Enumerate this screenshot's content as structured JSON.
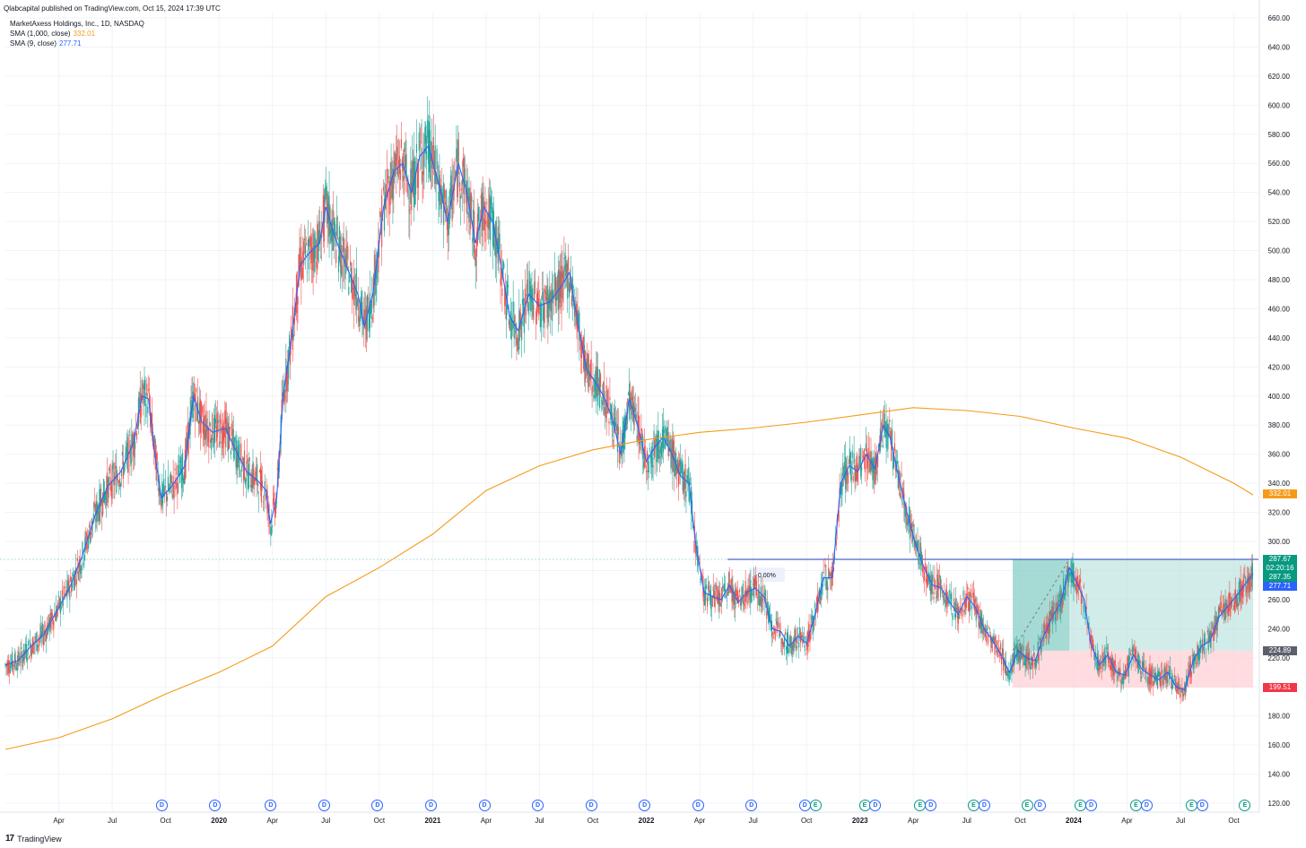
{
  "header": {
    "published": "Qlabcapital published on TradingView.com, Oct 15, 2024 17:39 UTC",
    "symbol": "MarketAxess Holdings, Inc., 1D, NASDAQ",
    "sma1000_label": "SMA (1,000, close)",
    "sma1000_value": "332.01",
    "sma9_label": "SMA (9, close)",
    "sma9_value": "277.71"
  },
  "footer": {
    "brand": "TradingView",
    "logo": "17"
  },
  "colors": {
    "up": "#26a69a",
    "down": "#ef5350",
    "sma1000": "#f59b19",
    "sma9": "#2962ff",
    "profit": "#b2dfdb",
    "loss": "#ffcdd2",
    "tag_green": "#089981",
    "tag_red": "#f23645",
    "tag_gray": "#5d606b"
  },
  "price_tags": {
    "sma1000": "332.01",
    "last": "287.67",
    "countdown": "02:20:16",
    "close": "287.35",
    "sma9": "277.71",
    "entry": "224.89",
    "stop": "199.51"
  },
  "measure_label": "0.00%",
  "events": [
    {
      "t": 2019.73,
      "k": "D"
    },
    {
      "t": 2019.98,
      "k": "D"
    },
    {
      "t": 2020.24,
      "k": "D"
    },
    {
      "t": 2020.49,
      "k": "D"
    },
    {
      "t": 2020.74,
      "k": "D"
    },
    {
      "t": 2020.99,
      "k": "D"
    },
    {
      "t": 2021.24,
      "k": "D"
    },
    {
      "t": 2021.49,
      "k": "D"
    },
    {
      "t": 2021.74,
      "k": "D"
    },
    {
      "t": 2021.99,
      "k": "D"
    },
    {
      "t": 2022.24,
      "k": "D"
    },
    {
      "t": 2022.49,
      "k": "D"
    },
    {
      "t": 2022.74,
      "k": "D"
    },
    {
      "t": 2022.79,
      "k": "E"
    },
    {
      "t": 2023.02,
      "k": "E"
    },
    {
      "t": 2023.07,
      "k": "D"
    },
    {
      "t": 2023.28,
      "k": "E"
    },
    {
      "t": 2023.33,
      "k": "D"
    },
    {
      "t": 2023.53,
      "k": "E"
    },
    {
      "t": 2023.58,
      "k": "D"
    },
    {
      "t": 2023.78,
      "k": "E"
    },
    {
      "t": 2023.84,
      "k": "D"
    },
    {
      "t": 2024.03,
      "k": "E"
    },
    {
      "t": 2024.08,
      "k": "D"
    },
    {
      "t": 2024.29,
      "k": "E"
    },
    {
      "t": 2024.34,
      "k": "D"
    },
    {
      "t": 2024.55,
      "k": "E"
    },
    {
      "t": 2024.6,
      "k": "D"
    },
    {
      "t": 2024.8,
      "k": "E"
    }
  ],
  "chart_data": {
    "type": "line",
    "title": "MarketAxess Holdings, Inc., 1D, NASDAQ",
    "xlabel": "",
    "ylabel": "",
    "ylim": [
      120,
      660
    ],
    "y_ticks": [
      120,
      140,
      160,
      180,
      200,
      220,
      240,
      260,
      280,
      300,
      320,
      340,
      360,
      380,
      400,
      420,
      440,
      460,
      480,
      500,
      520,
      540,
      560,
      580,
      600,
      620,
      640,
      660
    ],
    "x_ticks": [
      {
        "t": 2019.25,
        "label": "Apr"
      },
      {
        "t": 2019.5,
        "label": "Jul"
      },
      {
        "t": 2019.75,
        "label": "Oct"
      },
      {
        "t": 2020.0,
        "label": "2020"
      },
      {
        "t": 2020.25,
        "label": "Apr"
      },
      {
        "t": 2020.5,
        "label": "Jul"
      },
      {
        "t": 2020.75,
        "label": "Oct"
      },
      {
        "t": 2021.0,
        "label": "2021"
      },
      {
        "t": 2021.25,
        "label": "Apr"
      },
      {
        "t": 2021.5,
        "label": "Jul"
      },
      {
        "t": 2021.75,
        "label": "Oct"
      },
      {
        "t": 2022.0,
        "label": "2022"
      },
      {
        "t": 2022.25,
        "label": "Apr"
      },
      {
        "t": 2022.5,
        "label": "Jul"
      },
      {
        "t": 2022.75,
        "label": "Oct"
      },
      {
        "t": 2023.0,
        "label": "2023"
      },
      {
        "t": 2023.25,
        "label": "Apr"
      },
      {
        "t": 2023.5,
        "label": "Jul"
      },
      {
        "t": 2023.75,
        "label": "Oct"
      },
      {
        "t": 2024.0,
        "label": "2024"
      },
      {
        "t": 2024.25,
        "label": "Apr"
      },
      {
        "t": 2024.5,
        "label": "Jul"
      },
      {
        "t": 2024.75,
        "label": "Oct"
      }
    ],
    "grid": true,
    "series": [
      {
        "name": "SMA (9, close)",
        "points": [
          [
            2019.0,
            215
          ],
          [
            2019.06,
            218
          ],
          [
            2019.12,
            228
          ],
          [
            2019.18,
            236
          ],
          [
            2019.24,
            252
          ],
          [
            2019.3,
            268
          ],
          [
            2019.36,
            290
          ],
          [
            2019.42,
            318
          ],
          [
            2019.48,
            338
          ],
          [
            2019.54,
            348
          ],
          [
            2019.6,
            368
          ],
          [
            2019.64,
            400
          ],
          [
            2019.67,
            398
          ],
          [
            2019.7,
            360
          ],
          [
            2019.73,
            330
          ],
          [
            2019.78,
            338
          ],
          [
            2019.84,
            352
          ],
          [
            2019.88,
            400
          ],
          [
            2019.92,
            382
          ],
          [
            2019.97,
            375
          ],
          [
            2020.03,
            378
          ],
          [
            2020.08,
            362
          ],
          [
            2020.13,
            348
          ],
          [
            2020.18,
            342
          ],
          [
            2020.22,
            335
          ],
          [
            2020.24,
            312
          ],
          [
            2020.27,
            330
          ],
          [
            2020.3,
            400
          ],
          [
            2020.34,
            440
          ],
          [
            2020.38,
            490
          ],
          [
            2020.42,
            498
          ],
          [
            2020.47,
            505
          ],
          [
            2020.5,
            530
          ],
          [
            2020.54,
            510
          ],
          [
            2020.6,
            488
          ],
          [
            2020.65,
            470
          ],
          [
            2020.68,
            448
          ],
          [
            2020.72,
            470
          ],
          [
            2020.77,
            530
          ],
          [
            2020.82,
            555
          ],
          [
            2020.86,
            560
          ],
          [
            2020.9,
            540
          ],
          [
            2020.94,
            565
          ],
          [
            2020.98,
            572
          ],
          [
            2021.03,
            545
          ],
          [
            2021.07,
            520
          ],
          [
            2021.12,
            560
          ],
          [
            2021.16,
            540
          ],
          [
            2021.2,
            505
          ],
          [
            2021.24,
            530
          ],
          [
            2021.28,
            520
          ],
          [
            2021.32,
            490
          ],
          [
            2021.36,
            455
          ],
          [
            2021.4,
            445
          ],
          [
            2021.45,
            470
          ],
          [
            2021.5,
            462
          ],
          [
            2021.55,
            465
          ],
          [
            2021.6,
            475
          ],
          [
            2021.64,
            485
          ],
          [
            2021.68,
            450
          ],
          [
            2021.72,
            418
          ],
          [
            2021.76,
            410
          ],
          [
            2021.8,
            400
          ],
          [
            2021.84,
            385
          ],
          [
            2021.88,
            360
          ],
          [
            2021.92,
            398
          ],
          [
            2021.96,
            380
          ],
          [
            2022.0,
            355
          ],
          [
            2022.04,
            365
          ],
          [
            2022.08,
            372
          ],
          [
            2022.12,
            360
          ],
          [
            2022.16,
            345
          ],
          [
            2022.2,
            340
          ],
          [
            2022.23,
            300
          ],
          [
            2022.27,
            265
          ],
          [
            2022.31,
            262
          ],
          [
            2022.35,
            260
          ],
          [
            2022.39,
            270
          ],
          [
            2022.43,
            258
          ],
          [
            2022.47,
            265
          ],
          [
            2022.51,
            268
          ],
          [
            2022.55,
            262
          ],
          [
            2022.59,
            240
          ],
          [
            2022.63,
            238
          ],
          [
            2022.67,
            228
          ],
          [
            2022.71,
            235
          ],
          [
            2022.75,
            230
          ],
          [
            2022.79,
            250
          ],
          [
            2022.83,
            275
          ],
          [
            2022.87,
            275
          ],
          [
            2022.91,
            340
          ],
          [
            2022.95,
            352
          ],
          [
            2022.99,
            348
          ],
          [
            2023.03,
            360
          ],
          [
            2023.07,
            350
          ],
          [
            2023.11,
            380
          ],
          [
            2023.14,
            372
          ],
          [
            2023.18,
            345
          ],
          [
            2023.22,
            320
          ],
          [
            2023.26,
            298
          ],
          [
            2023.3,
            282
          ],
          [
            2023.34,
            270
          ],
          [
            2023.38,
            268
          ],
          [
            2023.42,
            258
          ],
          [
            2023.46,
            250
          ],
          [
            2023.5,
            262
          ],
          [
            2023.54,
            255
          ],
          [
            2023.58,
            240
          ],
          [
            2023.62,
            232
          ],
          [
            2023.66,
            222
          ],
          [
            2023.7,
            210
          ],
          [
            2023.74,
            225
          ],
          [
            2023.78,
            220
          ],
          [
            2023.82,
            218
          ],
          [
            2023.86,
            235
          ],
          [
            2023.9,
            248
          ],
          [
            2023.94,
            258
          ],
          [
            2023.98,
            282
          ],
          [
            2024.02,
            270
          ],
          [
            2024.05,
            260
          ],
          [
            2024.08,
            230
          ],
          [
            2024.12,
            215
          ],
          [
            2024.16,
            222
          ],
          [
            2024.2,
            210
          ],
          [
            2024.24,
            208
          ],
          [
            2024.28,
            222
          ],
          [
            2024.32,
            212
          ],
          [
            2024.36,
            208
          ],
          [
            2024.4,
            205
          ],
          [
            2024.44,
            210
          ],
          [
            2024.48,
            200
          ],
          [
            2024.52,
            198
          ],
          [
            2024.56,
            218
          ],
          [
            2024.6,
            228
          ],
          [
            2024.64,
            232
          ],
          [
            2024.68,
            248
          ],
          [
            2024.72,
            255
          ],
          [
            2024.76,
            262
          ],
          [
            2024.8,
            270
          ],
          [
            2024.84,
            278
          ]
        ]
      },
      {
        "name": "SMA (1,000, close)",
        "points": [
          [
            2019.0,
            157
          ],
          [
            2019.25,
            165
          ],
          [
            2019.5,
            178
          ],
          [
            2019.75,
            195
          ],
          [
            2020.0,
            210
          ],
          [
            2020.25,
            228
          ],
          [
            2020.5,
            262
          ],
          [
            2020.75,
            282
          ],
          [
            2021.0,
            305
          ],
          [
            2021.25,
            335
          ],
          [
            2021.5,
            352
          ],
          [
            2021.75,
            363
          ],
          [
            2022.0,
            370
          ],
          [
            2022.25,
            375
          ],
          [
            2022.5,
            378
          ],
          [
            2022.75,
            382
          ],
          [
            2023.0,
            387
          ],
          [
            2023.25,
            392
          ],
          [
            2023.5,
            390
          ],
          [
            2023.75,
            386
          ],
          [
            2024.0,
            378
          ],
          [
            2024.25,
            371
          ],
          [
            2024.5,
            358
          ],
          [
            2024.75,
            340
          ],
          [
            2024.84,
            332
          ]
        ]
      }
    ],
    "horizontal_line": 287.67,
    "position_tool": {
      "type": "long",
      "t_start": 2023.715,
      "t_end": 2024.84,
      "entry": 224.89,
      "target": 287.67,
      "stop": 199.51
    }
  }
}
